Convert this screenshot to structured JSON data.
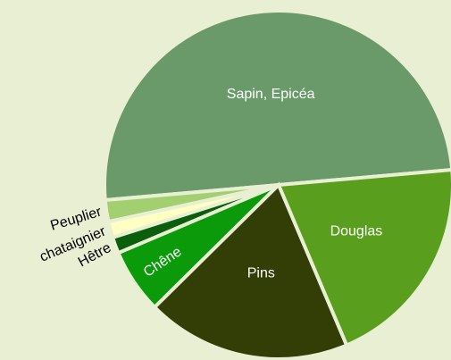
{
  "chart_data": {
    "type": "pie",
    "categories": [
      "Sapin, Epicéa",
      "Peuplier",
      "chataignier",
      "Hêtre",
      "Chêne",
      "Pins",
      "Douglas"
    ],
    "values": [
      50,
      2,
      1.5,
      1.5,
      6,
      19,
      20
    ],
    "colors": [
      "#6a9a6a",
      "#a2d070",
      "#ffffc4",
      "#0b5e0b",
      "#0a9a0a",
      "#333d06",
      "#5a9e1e"
    ]
  }
}
